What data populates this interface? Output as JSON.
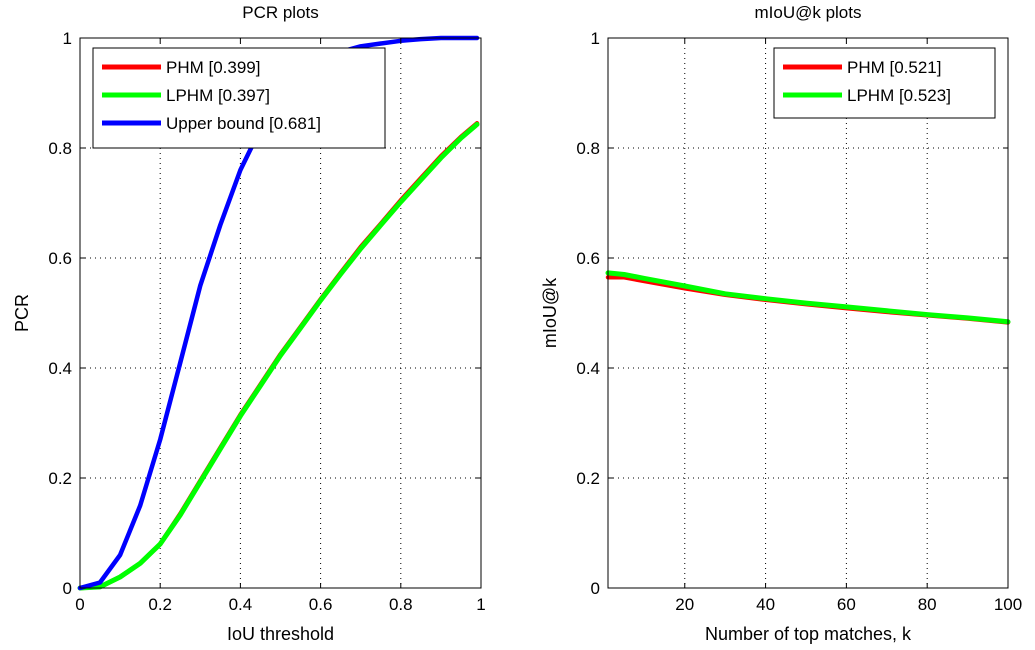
{
  "chart_data": [
    {
      "type": "line",
      "title": "PCR plots",
      "xlabel": "IoU threshold",
      "ylabel": "PCR",
      "xlim": [
        0,
        1
      ],
      "ylim": [
        0,
        1
      ],
      "xticks": [
        "0",
        "0.2",
        "0.4",
        "0.6",
        "0.8",
        "1"
      ],
      "yticks": [
        "0",
        "0.2",
        "0.4",
        "0.6",
        "0.8",
        "1"
      ],
      "grid": true,
      "legend_position": "top-left",
      "series": [
        {
          "name": "PHM [0.399]",
          "color": "#ff0000",
          "x": [
            0,
            0.05,
            0.1,
            0.15,
            0.2,
            0.25,
            0.3,
            0.35,
            0.4,
            0.45,
            0.5,
            0.55,
            0.6,
            0.65,
            0.7,
            0.75,
            0.8,
            0.85,
            0.9,
            0.95,
            0.99
          ],
          "y": [
            0,
            0.002,
            0.02,
            0.045,
            0.08,
            0.135,
            0.195,
            0.255,
            0.315,
            0.37,
            0.425,
            0.475,
            0.525,
            0.573,
            0.62,
            0.662,
            0.705,
            0.745,
            0.785,
            0.82,
            0.845
          ]
        },
        {
          "name": "LPHM [0.397]",
          "color": "#00ff00",
          "x": [
            0,
            0.05,
            0.1,
            0.15,
            0.2,
            0.25,
            0.3,
            0.35,
            0.4,
            0.45,
            0.5,
            0.55,
            0.6,
            0.65,
            0.7,
            0.75,
            0.8,
            0.85,
            0.9,
            0.95,
            0.99
          ],
          "y": [
            0,
            0.002,
            0.02,
            0.045,
            0.08,
            0.133,
            0.193,
            0.253,
            0.313,
            0.368,
            0.423,
            0.473,
            0.523,
            0.571,
            0.617,
            0.66,
            0.702,
            0.742,
            0.782,
            0.818,
            0.843
          ]
        },
        {
          "name": "Upper bound [0.681]",
          "color": "#0000ff",
          "x": [
            0,
            0.05,
            0.1,
            0.15,
            0.2,
            0.25,
            0.3,
            0.35,
            0.4,
            0.45,
            0.5,
            0.55,
            0.6,
            0.65,
            0.7,
            0.75,
            0.8,
            0.85,
            0.9,
            0.95,
            0.99
          ],
          "y": [
            0,
            0.01,
            0.06,
            0.15,
            0.27,
            0.41,
            0.55,
            0.66,
            0.76,
            0.835,
            0.895,
            0.935,
            0.96,
            0.975,
            0.985,
            0.99,
            0.995,
            0.998,
            1.0,
            1.0,
            1.0
          ]
        }
      ]
    },
    {
      "type": "line",
      "title": "mIoU@k plots",
      "xlabel": "Number of top matches, k",
      "ylabel": "mIoU@k",
      "xlim": [
        1,
        100
      ],
      "ylim": [
        0,
        1
      ],
      "xticks": [
        "20",
        "40",
        "60",
        "80",
        "100"
      ],
      "yticks": [
        "0",
        "0.2",
        "0.4",
        "0.6",
        "0.8",
        "1"
      ],
      "grid": true,
      "legend_position": "top-right",
      "series": [
        {
          "name": "PHM [0.521]",
          "color": "#ff0000",
          "x": [
            1,
            5,
            10,
            20,
            30,
            40,
            50,
            60,
            70,
            80,
            90,
            100
          ],
          "y": [
            0.565,
            0.565,
            0.558,
            0.545,
            0.533,
            0.524,
            0.516,
            0.509,
            0.502,
            0.496,
            0.49,
            0.483
          ]
        },
        {
          "name": "LPHM [0.523]",
          "color": "#00ff00",
          "x": [
            1,
            5,
            10,
            20,
            30,
            40,
            50,
            60,
            70,
            80,
            90,
            100
          ],
          "y": [
            0.573,
            0.57,
            0.563,
            0.549,
            0.535,
            0.526,
            0.518,
            0.511,
            0.504,
            0.497,
            0.491,
            0.484
          ]
        }
      ]
    }
  ]
}
